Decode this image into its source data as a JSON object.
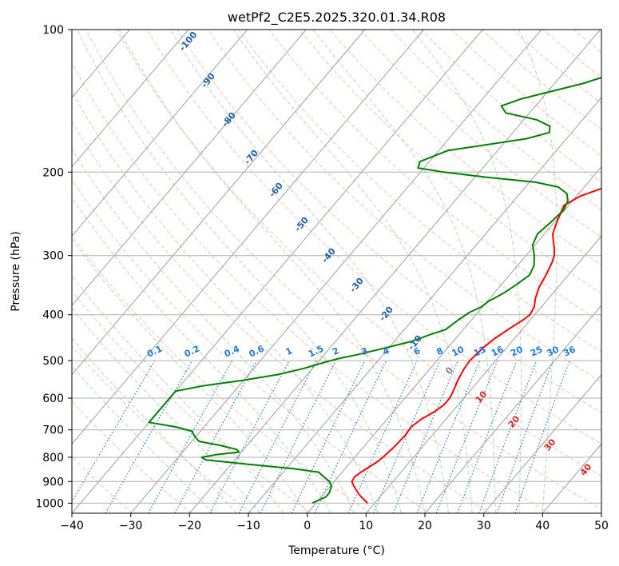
{
  "chart_data": {
    "type": "line",
    "subtype": "skew-t log-p diagram",
    "title": "wetPf2_C2E5.2025.320.01.34.R08",
    "xlabel": "Temperature (°C)",
    "ylabel": "Pressure (hPa)",
    "xlim": [
      -40,
      50
    ],
    "ylim": [
      1050,
      100
    ],
    "x_ticks": [
      "−40",
      "−30",
      "−20",
      "−10",
      "0",
      "10",
      "20",
      "30",
      "40",
      "50"
    ],
    "x_tick_values": [
      -40,
      -30,
      -20,
      -10,
      0,
      10,
      20,
      30,
      40,
      50
    ],
    "y_ticks": [
      "100",
      "200",
      "300",
      "400",
      "500",
      "600",
      "700",
      "800",
      "900",
      "1000"
    ],
    "y_tick_values": [
      100,
      200,
      300,
      400,
      500,
      600,
      700,
      800,
      900,
      1000
    ],
    "series": [
      {
        "name": "temperature",
        "color": "#ff0000",
        "points": [
          [
            1000,
            8.8
          ],
          [
            960,
            6.2
          ],
          [
            920,
            4.0
          ],
          [
            900,
            3.0
          ],
          [
            880,
            2.8
          ],
          [
            860,
            3.2
          ],
          [
            840,
            3.8
          ],
          [
            820,
            4.4
          ],
          [
            800,
            4.8
          ],
          [
            760,
            5.2
          ],
          [
            720,
            5.4
          ],
          [
            690,
            5.2
          ],
          [
            665,
            5.8
          ],
          [
            640,
            7.0
          ],
          [
            620,
            7.6
          ],
          [
            600,
            7.6
          ],
          [
            580,
            7.2
          ],
          [
            550,
            6.4
          ],
          [
            520,
            5.8
          ],
          [
            500,
            5.6
          ],
          [
            470,
            6.0
          ],
          [
            450,
            6.6
          ],
          [
            430,
            7.6
          ],
          [
            410,
            8.8
          ],
          [
            400,
            9.2
          ],
          [
            385,
            8.8
          ],
          [
            370,
            7.8
          ],
          [
            350,
            6.8
          ],
          [
            330,
            6.2
          ],
          [
            310,
            5.4
          ],
          [
            300,
            4.8
          ],
          [
            290,
            3.8
          ],
          [
            280,
            2.6
          ],
          [
            270,
            1.4
          ],
          [
            255,
            0.4
          ],
          [
            245,
            -0.2
          ],
          [
            235,
            -0.8
          ],
          [
            225,
            0.6
          ],
          [
            215,
            3.6
          ],
          [
            205,
            7.8
          ],
          [
            195,
            12.4
          ],
          [
            180,
            17.2
          ],
          [
            165,
            21.4
          ],
          [
            152,
            23.4
          ],
          [
            145,
            23.2
          ],
          [
            135,
            20.8
          ],
          [
            128,
            19.4
          ],
          [
            120,
            20.4
          ],
          [
            113,
            22.6
          ],
          [
            107,
            24.2
          ],
          [
            100,
            23.8
          ]
        ]
      },
      {
        "name": "dewpoint",
        "color": "#008000",
        "points": [
          [
            1000,
            -0.6
          ],
          [
            990,
            -0.2
          ],
          [
            970,
            0.8
          ],
          [
            950,
            0.8
          ],
          [
            920,
            0.2
          ],
          [
            900,
            -0.8
          ],
          [
            880,
            -2.4
          ],
          [
            860,
            -4.0
          ],
          [
            845,
            -9.0
          ],
          [
            830,
            -16.0
          ],
          [
            810,
            -25.0
          ],
          [
            800,
            -26.0
          ],
          [
            790,
            -24.0
          ],
          [
            780,
            -20.4
          ],
          [
            770,
            -21.2
          ],
          [
            755,
            -24.6
          ],
          [
            740,
            -28.8
          ],
          [
            720,
            -30.4
          ],
          [
            705,
            -31.4
          ],
          [
            690,
            -34.8
          ],
          [
            675,
            -40.0
          ],
          [
            580,
            -40.0
          ],
          [
            565,
            -36.0
          ],
          [
            550,
            -30.0
          ],
          [
            535,
            -25.0
          ],
          [
            520,
            -21.6
          ],
          [
            505,
            -19.0
          ],
          [
            495,
            -17.0
          ],
          [
            485,
            -14.2
          ],
          [
            470,
            -10.6
          ],
          [
            455,
            -7.0
          ],
          [
            440,
            -4.8
          ],
          [
            430,
            -3.0
          ],
          [
            420,
            -2.6
          ],
          [
            410,
            -2.2
          ],
          [
            395,
            -1.4
          ],
          [
            385,
            -0.2
          ],
          [
            375,
            0.2
          ],
          [
            360,
            1.6
          ],
          [
            345,
            2.6
          ],
          [
            330,
            3.4
          ],
          [
            315,
            2.8
          ],
          [
            300,
            1.4
          ],
          [
            285,
            -0.4
          ],
          [
            270,
            -1.2
          ],
          [
            255,
            -0.6
          ],
          [
            240,
            -0.2
          ],
          [
            230,
            -0.8
          ],
          [
            222,
            -2.0
          ],
          [
            215,
            -4.4
          ],
          [
            210,
            -9.0
          ],
          [
            205,
            -18.0
          ],
          [
            200,
            -26.0
          ],
          [
            196,
            -31.0
          ],
          [
            190,
            -31.6
          ],
          [
            180,
            -28.4
          ],
          [
            170,
            -16.8
          ],
          [
            165,
            -13.8
          ],
          [
            160,
            -14.6
          ],
          [
            155,
            -17.8
          ],
          [
            150,
            -24.0
          ],
          [
            145,
            -25.8
          ],
          [
            140,
            -23.4
          ],
          [
            130,
            -15.2
          ],
          [
            120,
            -8.8
          ],
          [
            110,
            -3.8
          ],
          [
            100,
            1.2
          ]
        ]
      }
    ],
    "reference_lines": {
      "isotherms": "solid gray, every 10 °C, skewed",
      "dry_adiabats": "dashed salmon",
      "moist_adiabats": "dashed light green",
      "mixing_ratio_lines": "dotted blue"
    },
    "mixing_ratio_labels": [
      "0.1",
      "0.2",
      "0.4",
      "0.6",
      "1",
      "1.5",
      "2",
      "3",
      "4",
      "6",
      "8",
      "10",
      "13",
      "16",
      "20",
      "25",
      "30",
      "36"
    ],
    "moist_adiabat_labels": [
      "-100",
      "-90",
      "-80",
      "-70",
      "-60",
      "-50",
      "-40",
      "-30",
      "-20",
      "-10"
    ],
    "dry_adiabat_labels": [
      "0",
      "10",
      "20",
      "30",
      "40"
    ]
  }
}
